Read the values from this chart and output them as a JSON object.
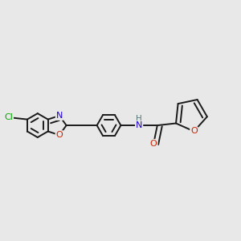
{
  "bg_color": "#e8e8e8",
  "bond_color": "#1a1a1a",
  "bond_lw": 1.4,
  "dbo": 0.018,
  "atom_colors": {
    "Cl": "#00aa00",
    "N": "#2200cc",
    "O": "#cc2200",
    "H": "#557777"
  },
  "font_size": 8.0,
  "font_size_small": 7.5
}
